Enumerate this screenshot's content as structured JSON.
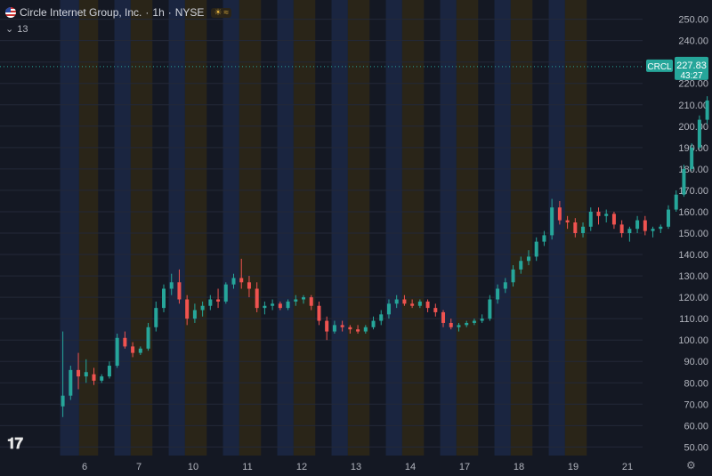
{
  "header": {
    "symbol_name": "Circle Internet Group, Inc.",
    "separator": "·",
    "interval": "1h",
    "exchange": "NYSE",
    "indicator_count": "13"
  },
  "colors": {
    "background": "#141823",
    "up": "#26a69a",
    "down": "#ef5350",
    "session_blue": "#1a2540",
    "session_brown": "#2a2518",
    "grid": "#232838",
    "label_text": "#b2b5be",
    "price_tag": "#26a69a"
  },
  "icons": [
    "us-flag-icon",
    "tradingview-logo-icon",
    "settings-gear-icon",
    "chevron-down-icon"
  ],
  "chart_data": {
    "type": "candlestick",
    "ylim": [
      46,
      254
    ],
    "y_ticks": [
      "250.00",
      "240.00",
      "230.00",
      "220.00",
      "210.00",
      "200.00",
      "190.00",
      "180.00",
      "170.00",
      "160.00",
      "150.00",
      "140.00",
      "130.00",
      "120.00",
      "110.00",
      "100.00",
      "90.00",
      "80.00",
      "70.00",
      "60.00",
      "50.00"
    ],
    "x_ticks": [
      "6",
      "7",
      "10",
      "11",
      "12",
      "13",
      "14",
      "17",
      "18",
      "19",
      "21"
    ],
    "last_price": {
      "symbol": "CRCL",
      "price": "227.83",
      "countdown": "43:27",
      "value": 227.83
    },
    "series": [
      {
        "name": "CRCL",
        "x_start": 5.6,
        "x_step": 0.143,
        "ohlc": [
          [
            69,
            104,
            64,
            74
          ],
          [
            74,
            88,
            72,
            86
          ],
          [
            86,
            94,
            77,
            83
          ],
          [
            83,
            91,
            80,
            85
          ],
          [
            84,
            87,
            79,
            81
          ],
          [
            81,
            84,
            80,
            83
          ],
          [
            83,
            90,
            82,
            88
          ],
          [
            88,
            103,
            87,
            101
          ],
          [
            101,
            104,
            96,
            97
          ],
          [
            97,
            99,
            92,
            94
          ],
          [
            94,
            97,
            93,
            96
          ],
          [
            96,
            108,
            95,
            106
          ],
          [
            106,
            118,
            104,
            115
          ],
          [
            115,
            126,
            113,
            124
          ],
          [
            124,
            131,
            121,
            127
          ],
          [
            127,
            133,
            117,
            119
          ],
          [
            119,
            121,
            107,
            110
          ],
          [
            110,
            117,
            108,
            114
          ],
          [
            114,
            118,
            111,
            116
          ],
          [
            116,
            121,
            114,
            119
          ],
          [
            119,
            124,
            115,
            118
          ],
          [
            118,
            127,
            117,
            126
          ],
          [
            126,
            131,
            124,
            129
          ],
          [
            129,
            138,
            124,
            127
          ],
          [
            127,
            130,
            120,
            124
          ],
          [
            124,
            127,
            113,
            115
          ],
          [
            115,
            118,
            112,
            116
          ],
          [
            116,
            119,
            114,
            117
          ],
          [
            117,
            118,
            114,
            115
          ],
          [
            115,
            119,
            114,
            118
          ],
          [
            118,
            121,
            116,
            119
          ],
          [
            119,
            121,
            117,
            120
          ],
          [
            120,
            121,
            114,
            116
          ],
          [
            116,
            118,
            107,
            109
          ],
          [
            109,
            111,
            100,
            104
          ],
          [
            104,
            109,
            103,
            107
          ],
          [
            107,
            109,
            104,
            106
          ],
          [
            106,
            107,
            103,
            105
          ],
          [
            105,
            107,
            103,
            104
          ],
          [
            104,
            107,
            103,
            106
          ],
          [
            106,
            111,
            105,
            109
          ],
          [
            109,
            114,
            107,
            112
          ],
          [
            112,
            119,
            110,
            117
          ],
          [
            117,
            121,
            115,
            119
          ],
          [
            119,
            121,
            116,
            117
          ],
          [
            117,
            119,
            115,
            116
          ],
          [
            116,
            119,
            115,
            118
          ],
          [
            118,
            119,
            113,
            115
          ],
          [
            115,
            117,
            111,
            113
          ],
          [
            113,
            114,
            106,
            108
          ],
          [
            108,
            110,
            105,
            106
          ],
          [
            106,
            108,
            104,
            107
          ],
          [
            107,
            109,
            106,
            108
          ],
          [
            108,
            110,
            107,
            109
          ],
          [
            109,
            112,
            108,
            110
          ],
          [
            110,
            121,
            109,
            119
          ],
          [
            119,
            126,
            117,
            124
          ],
          [
            124,
            129,
            122,
            127
          ],
          [
            127,
            135,
            125,
            133
          ],
          [
            133,
            139,
            131,
            137
          ],
          [
            137,
            142,
            135,
            139
          ],
          [
            139,
            148,
            137,
            146
          ],
          [
            146,
            151,
            144,
            149
          ],
          [
            149,
            166,
            147,
            162
          ],
          [
            162,
            165,
            154,
            156
          ],
          [
            156,
            158,
            152,
            155
          ],
          [
            155,
            157,
            148,
            150
          ],
          [
            150,
            155,
            148,
            153
          ],
          [
            153,
            162,
            151,
            160
          ],
          [
            160,
            162,
            154,
            158
          ],
          [
            158,
            161,
            155,
            159
          ],
          [
            159,
            160,
            152,
            154
          ],
          [
            154,
            156,
            148,
            150
          ],
          [
            150,
            153,
            146,
            152
          ],
          [
            152,
            158,
            150,
            156
          ],
          [
            156,
            158,
            149,
            151
          ],
          [
            151,
            153,
            148,
            152
          ],
          [
            152,
            154,
            150,
            153
          ],
          [
            153,
            163,
            152,
            161
          ],
          [
            161,
            170,
            160,
            168
          ],
          [
            168,
            182,
            167,
            180
          ],
          [
            180,
            192,
            179,
            190
          ],
          [
            190,
            205,
            189,
            203
          ],
          [
            203,
            214,
            201,
            212
          ],
          [
            212,
            225,
            210,
            223
          ],
          [
            223,
            236,
            219,
            232
          ],
          [
            232,
            235,
            215,
            220
          ],
          [
            220,
            222,
            212,
            217
          ],
          [
            217,
            226,
            215,
            224
          ],
          [
            224,
            231,
            222,
            228
          ]
        ]
      }
    ],
    "sessions": [
      {
        "from": 5.55,
        "to": 5.9,
        "color": "blue"
      },
      {
        "from": 5.9,
        "to": 6.25,
        "color": "brown"
      },
      {
        "from": 6.55,
        "to": 6.85,
        "color": "blue"
      },
      {
        "from": 6.85,
        "to": 7.25,
        "color": "brown"
      },
      {
        "from": 7.55,
        "to": 7.85,
        "color": "blue"
      },
      {
        "from": 7.85,
        "to": 8.25,
        "color": "brown"
      },
      {
        "from": 8.55,
        "to": 8.85,
        "color": "blue"
      },
      {
        "from": 8.85,
        "to": 9.25,
        "color": "brown"
      },
      {
        "from": 9.55,
        "to": 9.85,
        "color": "blue"
      },
      {
        "from": 9.85,
        "to": 10.25,
        "color": "brown"
      },
      {
        "from": 10.55,
        "to": 10.85,
        "color": "blue"
      },
      {
        "from": 10.85,
        "to": 11.25,
        "color": "brown"
      },
      {
        "from": 11.55,
        "to": 11.85,
        "color": "blue"
      },
      {
        "from": 11.85,
        "to": 12.25,
        "color": "brown"
      },
      {
        "from": 12.55,
        "to": 12.85,
        "color": "blue"
      },
      {
        "from": 12.85,
        "to": 13.25,
        "color": "brown"
      },
      {
        "from": 13.55,
        "to": 13.85,
        "color": "blue"
      },
      {
        "from": 13.85,
        "to": 14.25,
        "color": "brown"
      },
      {
        "from": 14.55,
        "to": 14.85,
        "color": "blue"
      },
      {
        "from": 14.85,
        "to": 15.25,
        "color": "brown"
      }
    ]
  }
}
